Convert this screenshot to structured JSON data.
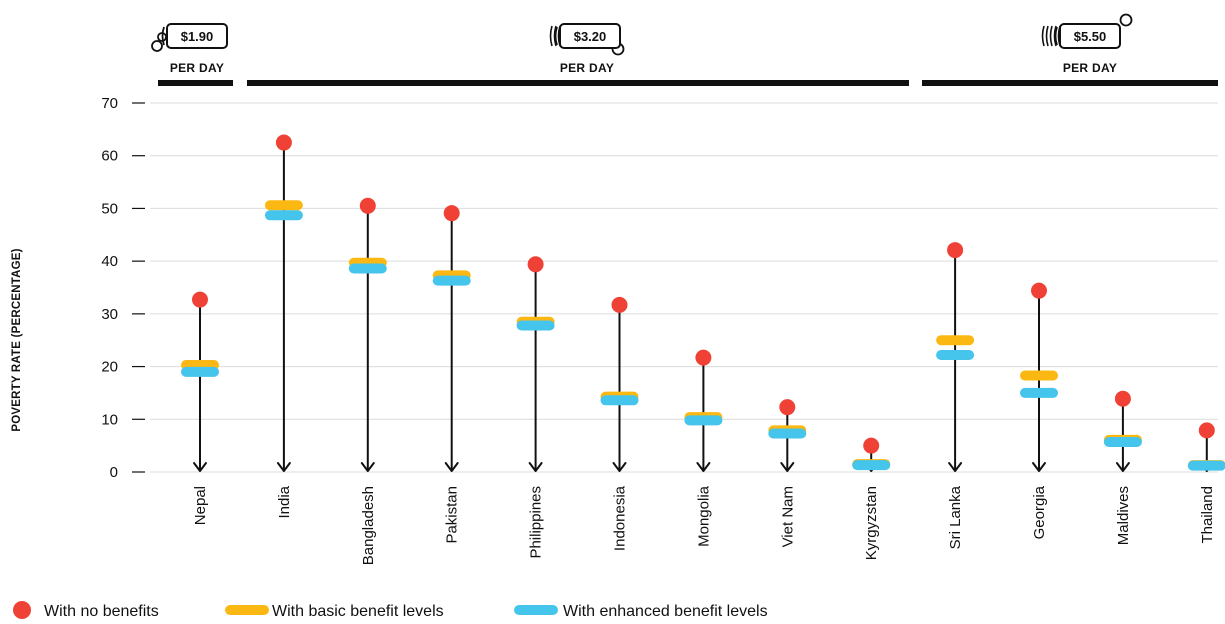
{
  "chart_data": {
    "type": "scatter",
    "ylabel": "POVERTY RATE (PERCENTAGE)",
    "ylim": [
      0,
      70
    ],
    "yticks": [
      "0",
      "10",
      "20",
      "30",
      "40",
      "50",
      "60",
      "70"
    ],
    "categories": [
      "Nepal",
      "India",
      "Bangladesh",
      "Pakistan",
      "Philippines",
      "Indonesia",
      "Mongolia",
      "Viet Nam",
      "Kyrgyzstan",
      "Sri Lanka",
      "Georgia",
      "Maldives",
      "Thailand"
    ],
    "series": [
      {
        "name": "With no benefits",
        "color": "#ef4136",
        "values": [
          32.7,
          62.5,
          50.5,
          49.1,
          39.4,
          31.7,
          21.7,
          12.3,
          5.0,
          42.1,
          34.4,
          13.9,
          7.9
        ]
      },
      {
        "name": "With basic benefit levels",
        "color": "#fbb812",
        "values": [
          20.3,
          50.6,
          39.7,
          37.3,
          28.5,
          14.3,
          10.4,
          7.9,
          1.5,
          25.0,
          18.3,
          6.1,
          1.3
        ]
      },
      {
        "name": "With enhanced benefit levels",
        "color": "#45c4ec",
        "values": [
          19.0,
          48.7,
          38.6,
          36.3,
          27.8,
          13.6,
          9.8,
          7.3,
          1.3,
          22.2,
          15.0,
          5.7,
          1.2
        ]
      }
    ],
    "groups": [
      {
        "price": "$1.90",
        "label": "PER DAY",
        "count": 1,
        "icon": "coin-stack-icon"
      },
      {
        "price": "$3.20",
        "label": "PER DAY",
        "count": 8,
        "icon": "cash-stack-icon"
      },
      {
        "price": "$5.50",
        "label": "PER DAY",
        "count": 4,
        "icon": "cash-stack-icon"
      }
    ],
    "legend": [
      {
        "label": "With no benefits",
        "marker": "dot"
      },
      {
        "label": "With basic benefit levels",
        "marker": "bar"
      },
      {
        "label": "With enhanced benefit levels",
        "marker": "bar"
      }
    ],
    "grid": true
  }
}
